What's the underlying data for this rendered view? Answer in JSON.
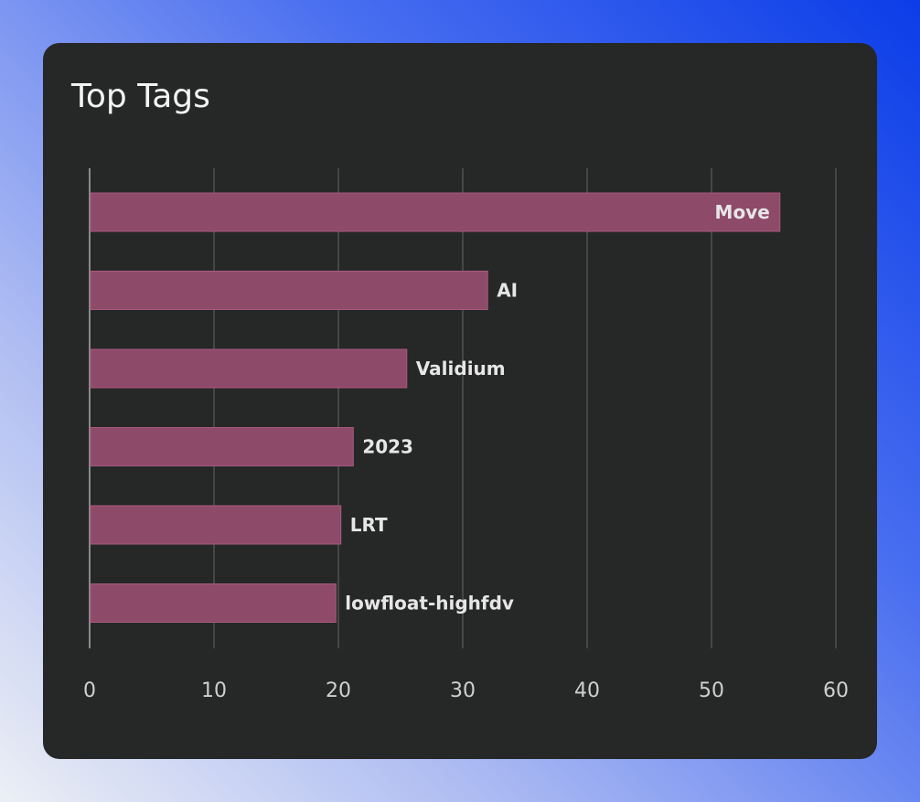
{
  "card": {
    "title": "Top Tags"
  },
  "colors": {
    "bar_fill": "#8e4a69",
    "bar_stroke": "#a65a7d",
    "grid": "#5a5b5b",
    "axis": "#8a8a8a",
    "card_bg": "#262727"
  },
  "chart_data": {
    "type": "bar",
    "orientation": "horizontal",
    "title": "Top Tags",
    "categories": [
      "Move",
      "AI",
      "Validium",
      "2023",
      "LRT",
      "lowfloat-highfdv"
    ],
    "values": [
      55.5,
      32,
      25.5,
      21.2,
      20.2,
      19.8
    ],
    "xlim": [
      0,
      60
    ],
    "xticks": [
      0,
      10,
      20,
      30,
      40,
      50,
      60
    ],
    "grid": true,
    "legend": "none"
  }
}
